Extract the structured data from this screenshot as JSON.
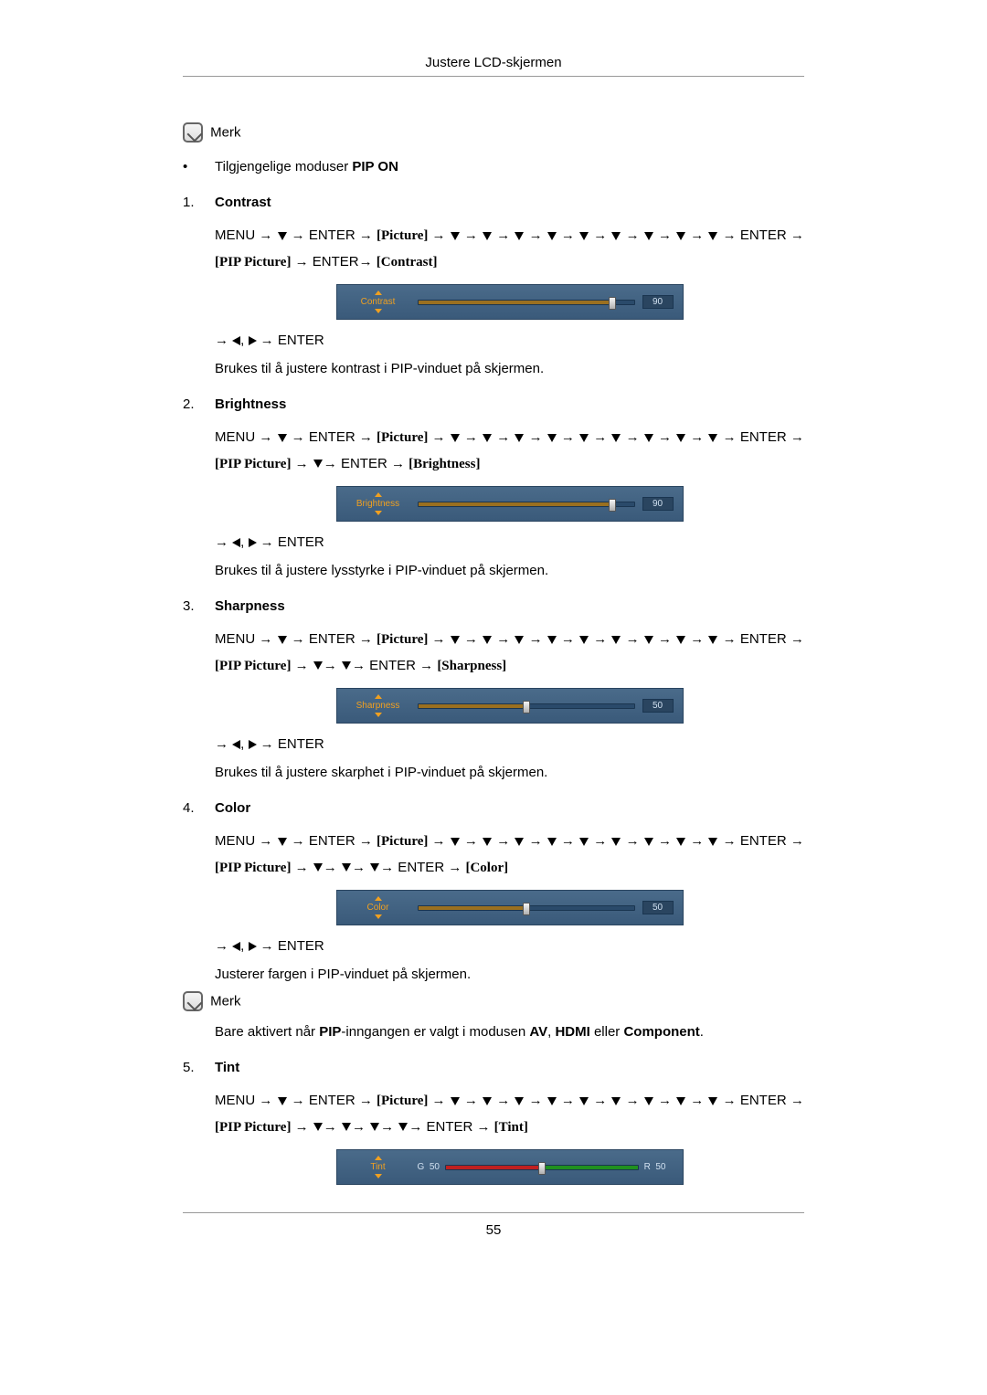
{
  "header": {
    "title": "Justere LCD-skjermen"
  },
  "page_number": "55",
  "note_label": "Merk",
  "available_modes": {
    "prefix": "Tilgjengelige moduser ",
    "bold": "PIP ON"
  },
  "nav": {
    "menu": "MENU",
    "enter": "ENTER",
    "picture": "[Picture]",
    "pip_picture": "[PIP Picture]"
  },
  "adjust_line": {
    "enter": "ENTER"
  },
  "items": [
    {
      "num": "1.",
      "heading": "Contrast",
      "submenu_bracket": "[Contrast]",
      "down_count_after_pip": 0,
      "osd": {
        "label": "Contrast",
        "value": 90,
        "max": 100,
        "type": "single"
      },
      "description": "Brukes til å justere kontrast i PIP-vinduet på skjermen."
    },
    {
      "num": "2.",
      "heading": "Brightness",
      "submenu_bracket": "[Brightness]",
      "down_count_after_pip": 1,
      "osd": {
        "label": "Brightness",
        "value": 90,
        "max": 100,
        "type": "single"
      },
      "description": "Brukes til å justere lysstyrke i PIP-vinduet på skjermen."
    },
    {
      "num": "3.",
      "heading": "Sharpness",
      "submenu_bracket": "[Sharpness]",
      "down_count_after_pip": 2,
      "osd": {
        "label": "Sharpness",
        "value": 50,
        "max": 100,
        "type": "single"
      },
      "description": "Brukes til å justere skarphet i PIP-vinduet på skjermen."
    },
    {
      "num": "4.",
      "heading": "Color",
      "submenu_bracket": "[Color]",
      "down_count_after_pip": 3,
      "osd": {
        "label": "Color",
        "value": 50,
        "max": 100,
        "type": "single"
      },
      "description": "Justerer fargen i PIP-vinduet på skjermen.",
      "extra_note": {
        "prefix": "Bare aktivert når ",
        "b1": "PIP",
        "mid1": "-inngangen er valgt i modusen ",
        "b2": "AV",
        "mid2": ", ",
        "b3": "HDMI",
        "mid3": " eller ",
        "b4": "Component",
        "suffix": "."
      }
    },
    {
      "num": "5.",
      "heading": "Tint",
      "submenu_bracket": "[Tint]",
      "down_count_after_pip": 4,
      "osd": {
        "label": "Tint",
        "g_value": 50,
        "r_value": 50,
        "type": "tint"
      }
    }
  ],
  "osd_colors": {
    "bg_top": "#4a6b8a",
    "bg_bottom": "#3a5a7a",
    "accent": "#f0a020",
    "fill": "#9a7020",
    "red": "#c02020",
    "green": "#209020"
  }
}
